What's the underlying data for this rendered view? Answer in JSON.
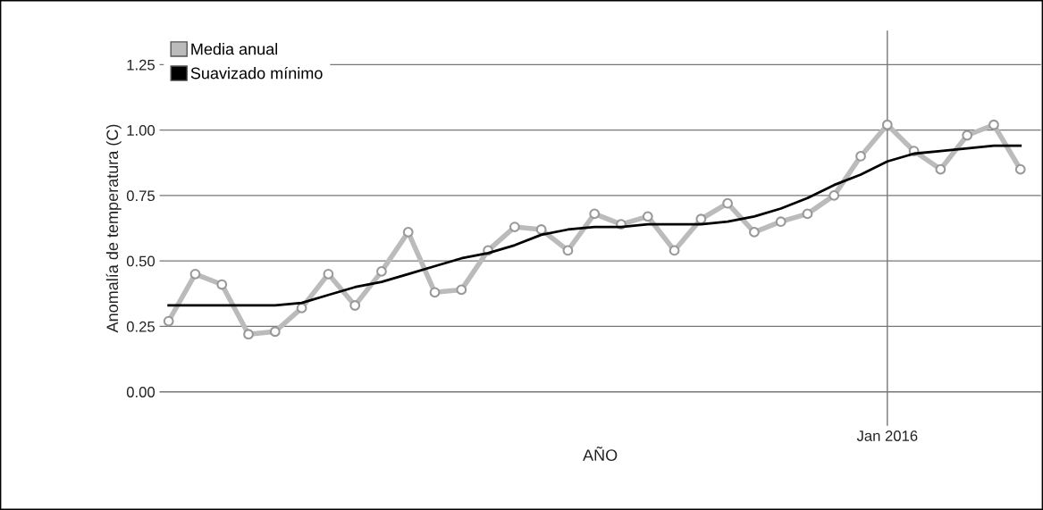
{
  "chart_data": {
    "type": "line",
    "xlabel": "AÑO",
    "ylabel": "Anomalía de temperatura (C)",
    "categories": [
      null,
      null,
      null,
      null,
      null,
      null,
      null,
      null,
      null,
      null,
      null,
      null,
      null,
      null,
      null,
      null,
      null,
      null,
      null,
      null,
      null,
      null,
      null,
      null,
      null,
      null,
      null,
      "Jan 2016",
      null,
      null,
      null,
      null,
      null
    ],
    "series": [
      {
        "name": "Media anual",
        "color": "#bbbbbb",
        "marker": "circle",
        "values": [
          0.27,
          0.45,
          0.41,
          0.22,
          0.23,
          0.32,
          0.45,
          0.33,
          0.46,
          0.61,
          0.38,
          0.39,
          0.54,
          0.63,
          0.62,
          0.54,
          0.68,
          0.64,
          0.67,
          0.54,
          0.66,
          0.72,
          0.61,
          0.65,
          0.68,
          0.75,
          0.9,
          1.02,
          0.92,
          0.85,
          0.98,
          1.02,
          0.85
        ]
      },
      {
        "name": "Suavizado mínimo",
        "color": "#000000",
        "marker": "none",
        "values": [
          0.33,
          0.33,
          0.33,
          0.33,
          0.33,
          0.34,
          0.37,
          0.4,
          0.42,
          0.45,
          0.48,
          0.51,
          0.53,
          0.56,
          0.6,
          0.62,
          0.63,
          0.63,
          0.64,
          0.64,
          0.64,
          0.65,
          0.67,
          0.7,
          0.74,
          0.79,
          0.83,
          0.88,
          0.91,
          0.92,
          0.93,
          0.94,
          0.94
        ]
      }
    ],
    "ylim": [
      -0.13,
      1.38
    ],
    "yticks": [
      {
        "value": 0,
        "label": "0.00"
      },
      {
        "value": 0.25,
        "label": "0.25"
      },
      {
        "value": 0.5,
        "label": "0.50"
      },
      {
        "value": 0.75,
        "label": "0.75"
      },
      {
        "value": 1.0,
        "label": "1.00"
      },
      {
        "value": 1.25,
        "label": "1.25"
      }
    ],
    "grid": true,
    "legend": "top left",
    "line_style": "solid"
  }
}
